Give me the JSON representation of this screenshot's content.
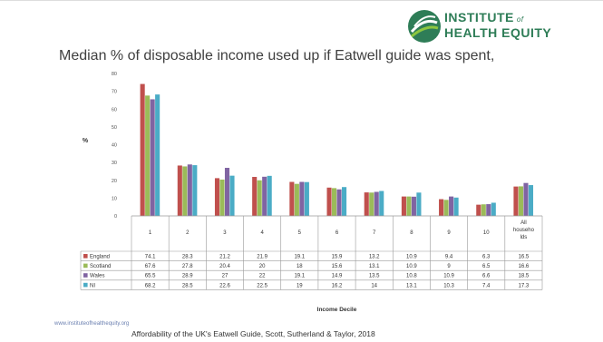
{
  "logo": {
    "line1": "INSTITUTE",
    "of": "of",
    "line2": "HEALTH EQUITY",
    "colors": {
      "dark": "#2e7d57",
      "light": "#8cc63f"
    }
  },
  "slide_title": "Median % of disposable income used up if Eatwell guide was spent,",
  "footer": {
    "url": "www.instituteofhealthequity.org",
    "source": "Affordability of the UK's Eatwell Guide, Scott, Sutherland & Taylor, 2018"
  },
  "chart_data": {
    "type": "bar",
    "title": "",
    "xlabel": "Income Decile",
    "ylabel": "%",
    "ylim": [
      0,
      80
    ],
    "yticks": [
      0,
      10,
      20,
      30,
      40,
      50,
      60,
      70,
      80
    ],
    "grid": false,
    "legend": "data table below chart",
    "categories": [
      "1",
      "2",
      "3",
      "4",
      "5",
      "6",
      "7",
      "8",
      "9",
      "10",
      "All households"
    ],
    "category_labels": [
      [
        "1"
      ],
      [
        "2"
      ],
      [
        "3"
      ],
      [
        "4"
      ],
      [
        "5"
      ],
      [
        "6"
      ],
      [
        "7"
      ],
      [
        "8"
      ],
      [
        "9"
      ],
      [
        "10"
      ],
      [
        "All",
        "househo",
        "lds"
      ]
    ],
    "series": [
      {
        "name": "England",
        "color": "#c0504d",
        "values": [
          74.1,
          28.3,
          21.2,
          21.9,
          19.1,
          15.9,
          13.2,
          10.9,
          9.4,
          6.3,
          16.5
        ]
      },
      {
        "name": "Scotland",
        "color": "#9bbb59",
        "values": [
          67.6,
          27.8,
          20.4,
          20,
          18,
          15.6,
          13.1,
          10.9,
          9,
          6.5,
          16.6
        ]
      },
      {
        "name": "Wales",
        "color": "#8064a2",
        "values": [
          65.5,
          28.9,
          27,
          22,
          19.1,
          14.9,
          13.5,
          10.8,
          10.9,
          6.6,
          18.5
        ]
      },
      {
        "name": "NI",
        "color": "#4bacc6",
        "values": [
          68.2,
          28.5,
          22.6,
          22.5,
          19,
          16.2,
          14,
          13.1,
          10.3,
          7.4,
          17.3
        ]
      }
    ]
  }
}
